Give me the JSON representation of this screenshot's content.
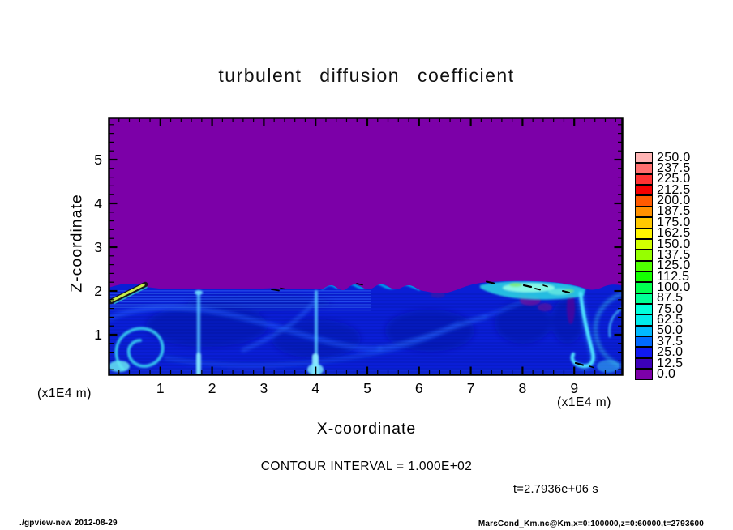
{
  "title": "turbulent diffusion coefficient",
  "plot": {
    "x_axis": {
      "label": "X-coordinate",
      "unit": "(x1E4 m)",
      "tick_labels": [
        "1",
        "2",
        "3",
        "4",
        "5",
        "6",
        "7",
        "8",
        "9"
      ]
    },
    "y_axis": {
      "label": "Z-coordinate",
      "unit": "(x1E4 m)",
      "tick_labels": [
        "5",
        "4",
        "3",
        "2",
        "1"
      ]
    }
  },
  "colorbar": {
    "entries": [
      {
        "value": "250.0",
        "color": "#FFB4B4"
      },
      {
        "value": "237.5",
        "color": "#FF6E6E"
      },
      {
        "value": "225.0",
        "color": "#FF3232"
      },
      {
        "value": "212.5",
        "color": "#F50000"
      },
      {
        "value": "200.0",
        "color": "#FF5A00"
      },
      {
        "value": "187.5",
        "color": "#FF9100"
      },
      {
        "value": "175.0",
        "color": "#FFC800"
      },
      {
        "value": "162.5",
        "color": "#FFF500"
      },
      {
        "value": "150.0",
        "color": "#D2FF00"
      },
      {
        "value": "137.5",
        "color": "#96FF00"
      },
      {
        "value": "125.0",
        "color": "#50FF00"
      },
      {
        "value": "112.5",
        "color": "#14FF00"
      },
      {
        "value": "100.0",
        "color": "#00FF50"
      },
      {
        "value": "87.5",
        "color": "#00FF96"
      },
      {
        "value": "75.0",
        "color": "#00FFDC"
      },
      {
        "value": "62.5",
        "color": "#00EBEB"
      },
      {
        "value": "50.0",
        "color": "#00B9FF"
      },
      {
        "value": "37.5",
        "color": "#0069FF"
      },
      {
        "value": "25.0",
        "color": "#0F19F0"
      },
      {
        "value": "12.5",
        "color": "#3C00B9"
      },
      {
        "value": "0.0",
        "color": "#7C00A8"
      }
    ]
  },
  "annotations": {
    "contour_interval": "CONTOUR INTERVAL = 1.000E+02",
    "time": "t=2.7936e+06 s"
  },
  "footer": {
    "left": "./gpview-new  2012-08-29",
    "right": "MarsCond_Km.nc@Km,x=0:100000,z=0:60000,t=2793600"
  },
  "chart_data": {
    "type": "heatmap",
    "title": "turbulent diffusion coefficient",
    "xlabel": "X-coordinate (x1E4 m)",
    "ylabel": "Z-coordinate (x1E4 m)",
    "xlim": [
      0,
      10
    ],
    "ylim": [
      0,
      6
    ],
    "time_seconds": 2793600,
    "contour_interval": 100.0,
    "colorbar_range": [
      0.0,
      250.0
    ],
    "colorbar_levels": [
      0.0,
      12.5,
      25.0,
      37.5,
      50.0,
      62.5,
      75.0,
      87.5,
      100.0,
      112.5,
      125.0,
      137.5,
      150.0,
      162.5,
      175.0,
      187.5,
      200.0,
      212.5,
      225.0,
      237.5,
      250.0
    ],
    "legend_position": "right",
    "grid": false,
    "description": "Vertical x-z cross-section of turbulent diffusion coefficient in a Mars boundary-layer simulation; value is ~0 (purple) above z~2e4 m and turbulent blue/cyan structures (roughly 10-100, locally ~150 in thin shear streaks) below z~2e4 m, with a bright cyan maximum region near x~8-9e4 m at the boundary-layer top.",
    "x": [
      0.5,
      1.5,
      2.5,
      3.5,
      4.5,
      5.5,
      6.5,
      7.5,
      8.5,
      9.5
    ],
    "z": [
      5.5,
      4.5,
      3.5,
      2.5,
      1.5,
      0.5
    ],
    "values": [
      [
        0,
        0,
        0,
        0,
        0,
        0,
        0,
        0,
        0,
        0
      ],
      [
        0,
        0,
        0,
        0,
        0,
        0,
        0,
        0,
        0,
        0
      ],
      [
        0,
        0,
        0,
        0,
        0,
        0,
        0,
        0,
        0,
        0
      ],
      [
        0,
        0,
        0,
        0,
        0,
        0,
        0,
        0,
        0,
        0
      ],
      [
        30,
        25,
        25,
        35,
        30,
        30,
        30,
        45,
        90,
        40
      ],
      [
        55,
        45,
        40,
        60,
        40,
        45,
        40,
        50,
        75,
        50
      ]
    ]
  }
}
